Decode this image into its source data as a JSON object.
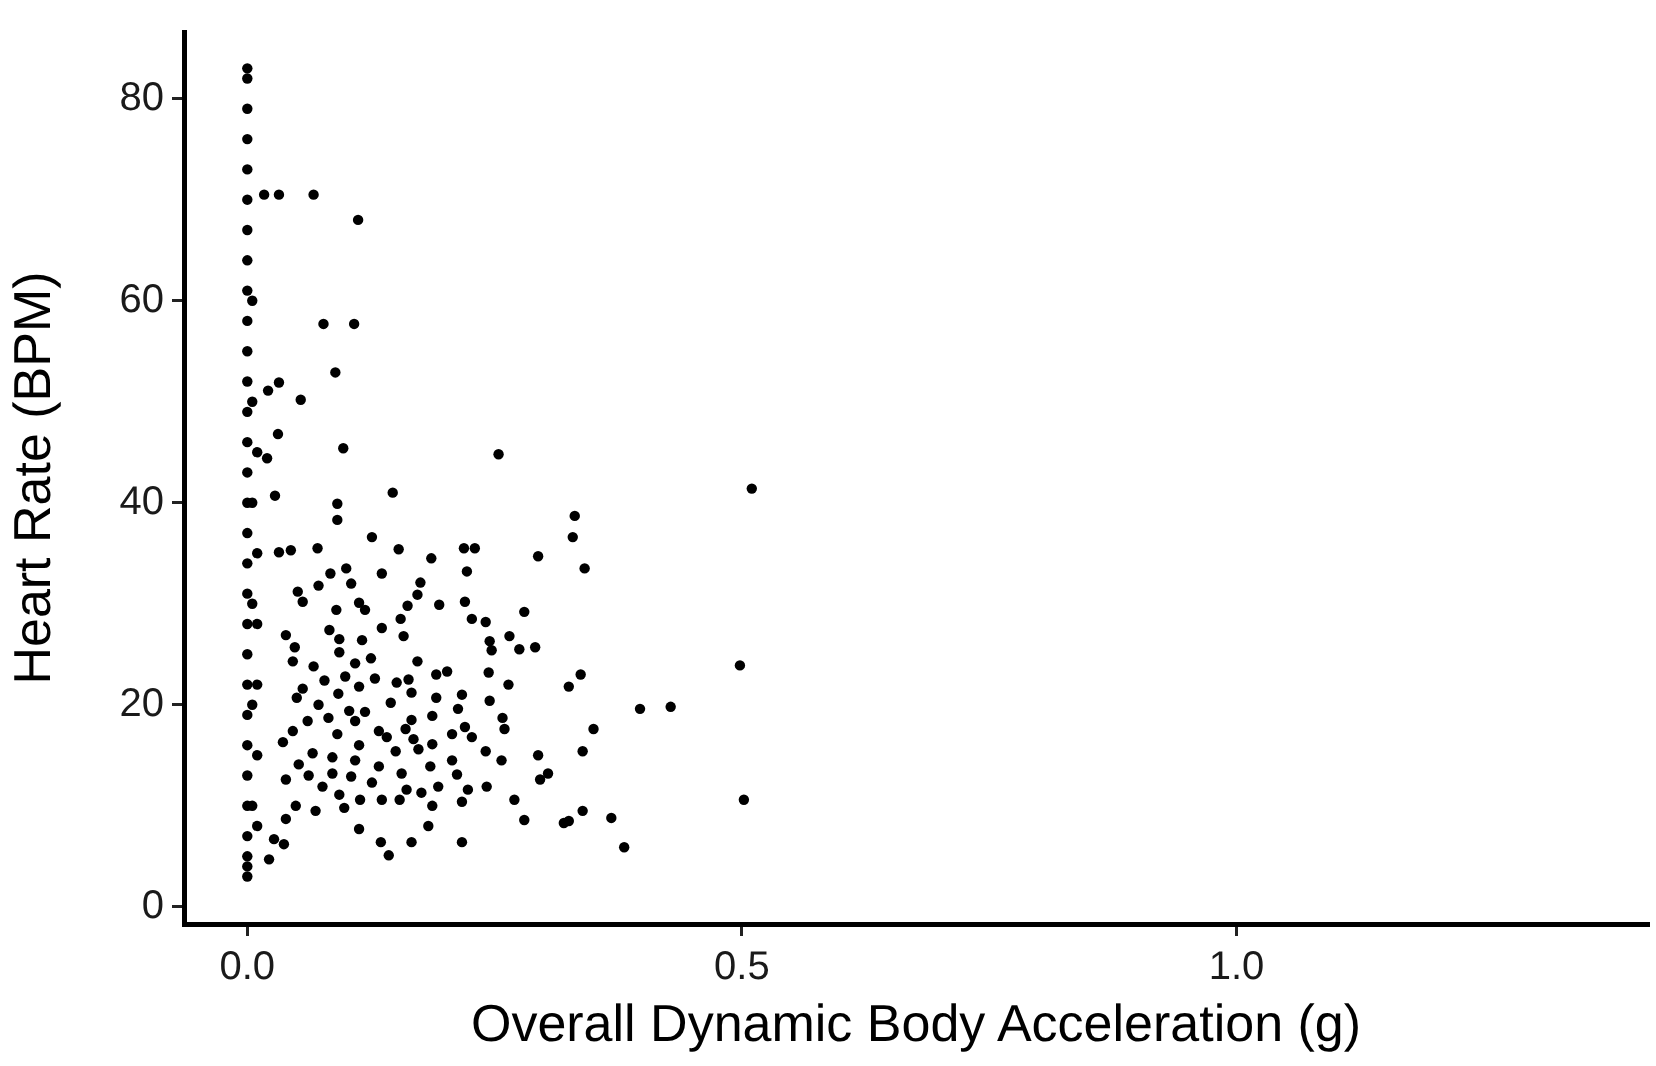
{
  "chart_data": {
    "type": "scatter",
    "xlabel": "Overall Dynamic Body Acceleration (g)",
    "ylabel": "Heart Rate (BPM)",
    "xlim": [
      -0.064,
      1.416
    ],
    "ylim": [
      -1.7,
      86.6
    ],
    "xticks": [
      {
        "value": 0,
        "label": "0.0"
      },
      {
        "value": 0.5,
        "label": "0.5"
      },
      {
        "value": 1,
        "label": "1.0"
      }
    ],
    "yticks": [
      0,
      20,
      40,
      60,
      80
    ],
    "grid": false,
    "legend": false,
    "marker": "circle",
    "series": [
      {
        "color": "#000000",
        "x": [
          0,
          0,
          0,
          0,
          0,
          0,
          0,
          0,
          0,
          0,
          0,
          0,
          0,
          0,
          0,
          0,
          0,
          0,
          0,
          0,
          0,
          0,
          0,
          0,
          0,
          0,
          0,
          0,
          0,
          0,
          0.005,
          0.005,
          0.005,
          0.005,
          0.005,
          0.005,
          0.01,
          0.01,
          0.01,
          0.01,
          0.01,
          0.01,
          0.017,
          0.032,
          0.067,
          0.112,
          0.077,
          0.108,
          0.089,
          0.032,
          0.021,
          0.054,
          0.031,
          0.097,
          0.254,
          0.02,
          0.51,
          0.331,
          0.329,
          0.341,
          0.498,
          0.337,
          0.325,
          0.397,
          0.428,
          0.35,
          0.339,
          0.502,
          0.339,
          0.325,
          0.32,
          0.368,
          0.381,
          0.028,
          0.091,
          0.091,
          0.147,
          0.126,
          0.032,
          0.044,
          0.071,
          0.153,
          0.186,
          0.219,
          0.23,
          0.222,
          0.294,
          0.084,
          0.1,
          0.136,
          0.105,
          0.175,
          0.072,
          0.051,
          0.056,
          0.172,
          0.22,
          0.113,
          0.119,
          0.194,
          0.162,
          0.28,
          0.09,
          0.083,
          0.136,
          0.155,
          0.227,
          0.241,
          0.093,
          0.116,
          0.158,
          0.245,
          0.265,
          0.039,
          0.048,
          0.093,
          0.247,
          0.275,
          0.291,
          0.125,
          0.109,
          0.046,
          0.172,
          0.067,
          0.202,
          0.191,
          0.244,
          0.151,
          0.163,
          0.099,
          0.129,
          0.078,
          0.264,
          0.056,
          0.113,
          0.092,
          0.166,
          0.191,
          0.217,
          0.05,
          0.145,
          0.245,
          0.072,
          0.103,
          0.119,
          0.213,
          0.082,
          0.061,
          0.166,
          0.187,
          0.258,
          0.109,
          0.046,
          0.133,
          0.16,
          0.22,
          0.26,
          0.091,
          0.207,
          0.141,
          0.168,
          0.227,
          0.036,
          0.113,
          0.187,
          0.066,
          0.15,
          0.173,
          0.241,
          0.086,
          0.109,
          0.207,
          0.257,
          0.294,
          0.052,
          0.133,
          0.185,
          0.304,
          0.062,
          0.086,
          0.105,
          0.156,
          0.212,
          0.296,
          0.039,
          0.126,
          0.193,
          0.076,
          0.223,
          0.242,
          0.161,
          0.176,
          0.093,
          0.114,
          0.136,
          0.154,
          0.187,
          0.217,
          0.27,
          0.049,
          0.098,
          0.069,
          0.039,
          0.28,
          0.113,
          0.183,
          0.027,
          0.037,
          0.135,
          0.166,
          0.217,
          0.022,
          0.143
        ],
        "values": [
          83,
          82,
          79,
          76,
          73,
          70,
          67,
          64,
          61,
          58,
          55,
          52,
          49,
          46,
          43,
          40,
          37,
          34,
          31,
          28,
          25,
          22,
          19,
          16,
          13,
          10,
          7,
          5,
          4,
          3,
          60,
          50,
          40,
          30,
          20,
          10,
          45,
          35,
          28,
          22,
          15,
          8,
          70.5,
          70.5,
          70.5,
          68,
          57.7,
          57.7,
          52.9,
          51.9,
          51.1,
          50.2,
          46.8,
          45.4,
          44.8,
          44.4,
          41.4,
          38.7,
          36.6,
          33.5,
          23.9,
          23,
          21.8,
          19.6,
          19.8,
          17.6,
          15.4,
          10.6,
          9.5,
          8.5,
          8.3,
          8.8,
          5.9,
          40.7,
          39.9,
          38.3,
          41,
          36.6,
          35.1,
          35.3,
          35.5,
          35.4,
          34.5,
          35.5,
          35.5,
          33.2,
          34.7,
          33,
          33.5,
          33,
          32,
          32.1,
          31.8,
          31.2,
          30.2,
          30.9,
          30.2,
          30.1,
          29.4,
          29.9,
          29.8,
          29.2,
          29.4,
          27.4,
          27.6,
          28.5,
          28.5,
          28.2,
          26.5,
          26.4,
          26.8,
          26.3,
          26.8,
          26.9,
          25.7,
          25.2,
          25.4,
          25.5,
          25.7,
          24.6,
          24.1,
          24.3,
          24.3,
          23.8,
          23.3,
          23,
          23.2,
          22.2,
          22.5,
          22.8,
          22.6,
          22.4,
          22,
          21.6,
          21.8,
          21.1,
          21.2,
          20.7,
          21,
          20.7,
          20.2,
          20.4,
          20,
          19.4,
          19.3,
          19.6,
          18.7,
          18.4,
          18.5,
          18.9,
          18.7,
          18.4,
          17.4,
          17.4,
          17.6,
          17.8,
          17.6,
          17.1,
          17.1,
          16.8,
          16.6,
          16.8,
          16.3,
          16,
          16.1,
          15.2,
          15.4,
          15.6,
          15.4,
          14.8,
          14.5,
          14.5,
          14.5,
          15,
          14.1,
          13.9,
          13.9,
          13.2,
          13,
          13.2,
          12.9,
          13.2,
          13.1,
          12.6,
          12.6,
          12.3,
          11.9,
          11.9,
          11.6,
          11.9,
          11.6,
          11.3,
          11.1,
          10.6,
          10.6,
          10.6,
          10,
          10.4,
          10.6,
          10,
          9.8,
          9.5,
          8.7,
          8.6,
          7.7,
          8,
          6.7,
          6.2,
          6.4,
          6.4,
          6.4,
          4.7,
          5.1
        ]
      }
    ]
  }
}
